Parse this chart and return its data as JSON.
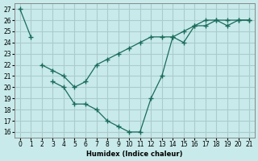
{
  "xlabel": "Humidex (Indice chaleur)",
  "bg_color": "#c8eaea",
  "grid_color": "#aacccc",
  "line_color": "#1a6b5a",
  "xlim": [
    -0.5,
    21.5
  ],
  "ylim": [
    15.5,
    27.5
  ],
  "yticks": [
    16,
    17,
    18,
    19,
    20,
    21,
    22,
    23,
    24,
    25,
    26,
    27
  ],
  "xticks": [
    0,
    1,
    2,
    3,
    4,
    5,
    6,
    7,
    8,
    9,
    10,
    11,
    12,
    13,
    14,
    15,
    16,
    17,
    18,
    19,
    20,
    21
  ],
  "line1_x": [
    0,
    1,
    2,
    3,
    4,
    5,
    6,
    7,
    8,
    9,
    10,
    11,
    12,
    13,
    14,
    15,
    16,
    17,
    18,
    19,
    20,
    21
  ],
  "line1_y": [
    27,
    24.5,
    null,
    20.5,
    20,
    18.5,
    18.5,
    18,
    17,
    16.5,
    16,
    16,
    19,
    21,
    24.5,
    24,
    25.5,
    26,
    26,
    25.5,
    26,
    26
  ],
  "line2_x": [
    2,
    3,
    4,
    5,
    6,
    7,
    8,
    9,
    10,
    11,
    12,
    13,
    14,
    15,
    16,
    17,
    18,
    19,
    20,
    21
  ],
  "line2_y": [
    22,
    21.5,
    21,
    20,
    20.5,
    22,
    22.5,
    23,
    23.5,
    24,
    24.5,
    24.5,
    24.5,
    25,
    25.5,
    25.5,
    26,
    26,
    26,
    26
  ]
}
